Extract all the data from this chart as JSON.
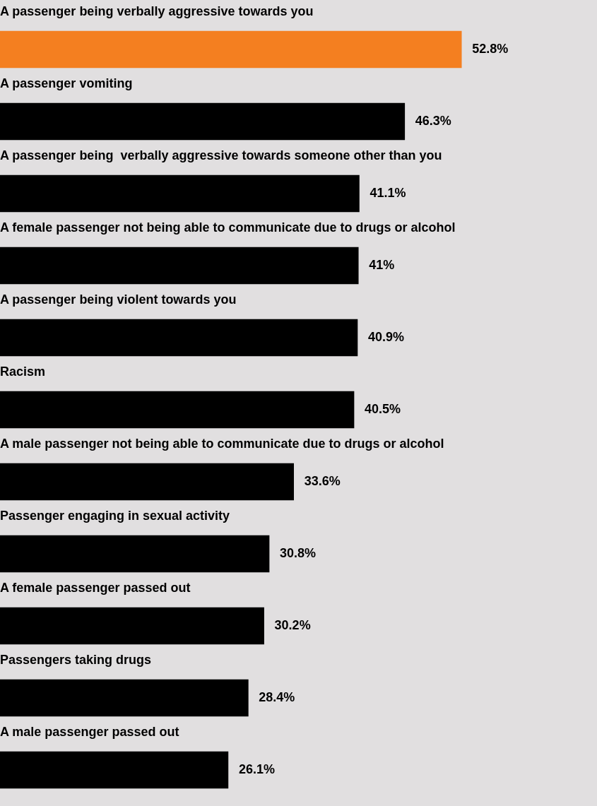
{
  "chart_data": {
    "type": "bar",
    "orientation": "horizontal",
    "categories": [
      "A passenger being verbally aggressive towards you",
      "A passenger vomiting",
      "A passenger being  verbally aggressive towards someone other than you",
      "A female passenger not being able to communicate due to drugs or alcohol",
      "A passenger being violent towards you",
      "Racism",
      "A male passenger not being able to communicate due to drugs or alcohol",
      "Passenger engaging in sexual activity",
      "A female passenger passed out",
      "Passengers taking drugs",
      "A male passenger passed out"
    ],
    "values": [
      52.8,
      46.3,
      41.1,
      41,
      40.9,
      40.5,
      33.6,
      30.8,
      30.2,
      28.4,
      26.1
    ],
    "value_labels": [
      "52.8%",
      "46.3%",
      "41.1%",
      "41%",
      "40.9%",
      "40.5%",
      "33.6%",
      "30.8%",
      "30.2%",
      "28.4%",
      "26.1%"
    ],
    "colors": [
      "#f47f20",
      "#000000",
      "#000000",
      "#000000",
      "#000000",
      "#000000",
      "#000000",
      "#000000",
      "#000000",
      "#000000",
      "#000000"
    ],
    "legend": false
  }
}
